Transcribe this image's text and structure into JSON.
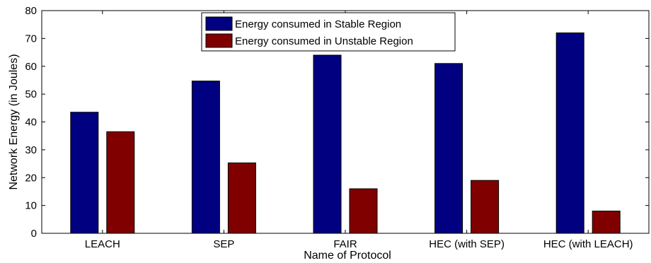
{
  "chart_data": {
    "type": "bar",
    "title": "",
    "xlabel": "Name of Protocol",
    "ylabel": "Network Energy (in Joules)",
    "ylim": [
      0,
      80
    ],
    "yticks": [
      0,
      10,
      20,
      30,
      40,
      50,
      60,
      70,
      80
    ],
    "grid": false,
    "legend_position": "top-center",
    "categories": [
      "LEACH",
      "SEP",
      "FAIR",
      "HEC (with SEP)",
      "HEC (with LEACH)"
    ],
    "series": [
      {
        "name": "Energy consumed in Stable Region",
        "color": "#000080",
        "values": [
          43.5,
          54.7,
          64,
          61,
          72
        ]
      },
      {
        "name": "Energy consumed in Unstable Region",
        "color": "#800000",
        "values": [
          36.5,
          25.3,
          16,
          19,
          8
        ]
      }
    ]
  }
}
